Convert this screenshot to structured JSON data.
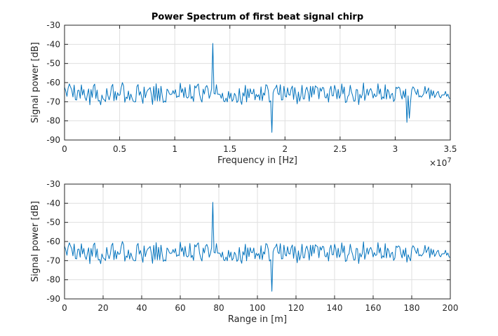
{
  "figure": {
    "title": "Power Spectrum of first beat signal chirp"
  },
  "colors": {
    "line": "#0072bd",
    "axes": "#262626",
    "grid": "#dfdfdf",
    "background": "#ffffff"
  },
  "chart_data": [
    {
      "type": "line",
      "title": "Power Spectrum of first beat signal chirp",
      "xlabel": "Frequency in [Hz]",
      "ylabel": "Signal power [dB]",
      "x_exponent_label": "×10^7",
      "xlim": [
        0,
        35000000
      ],
      "ylim": [
        -90,
        -30
      ],
      "xtick_labels": [
        "0",
        "0.5",
        "1",
        "1.5",
        "2",
        "2.5",
        "3",
        "3.5"
      ],
      "ytick_labels": [
        "-30",
        "-40",
        "-50",
        "-60",
        "-70",
        "-80",
        "-90"
      ],
      "grid": true,
      "series": [
        {
          "x_start": 0,
          "x_end": 35000000,
          "values": [
            -62.4,
            -64.3,
            -67.2,
            -62.8,
            -60.7,
            -62.3,
            -63.9,
            -67.5,
            -61.3,
            -68.9,
            -69.1,
            -64.1,
            -64.0,
            -68.2,
            -61.2,
            -66.5,
            -63.6,
            -67.9,
            -69.4,
            -66.1,
            -63.3,
            -71.6,
            -63.6,
            -67.7,
            -61.8,
            -60.8,
            -68.3,
            -63.9,
            -69.6,
            -69.3,
            -71.6,
            -66.5,
            -68.5,
            -69.0,
            -69.9,
            -63.1,
            -66.9,
            -69.0,
            -66.6,
            -62.1,
            -60.9,
            -69.5,
            -64.6,
            -69.1,
            -65.3,
            -66.7,
            -66.4,
            -62.6,
            -60.0,
            -61.8,
            -70.3,
            -67.6,
            -68.3,
            -64.4,
            -69.2,
            -66.0,
            -68.1,
            -69.7,
            -70.1,
            -70.0,
            -62.1,
            -61.0,
            -66.6,
            -64.7,
            -67.8,
            -70.9,
            -62.3,
            -67.9,
            -65.2,
            -63.9,
            -63.4,
            -62.6,
            -66.1,
            -71.4,
            -62.0,
            -69.4,
            -60.6,
            -69.6,
            -63.0,
            -69.6,
            -61.9,
            -66.7,
            -70.4,
            -69.6,
            -70.2,
            -63.4,
            -64.2,
            -65.9,
            -66.3,
            -66.0,
            -64.2,
            -65.9,
            -63.7,
            -67.8,
            -67.0,
            -67.4,
            -60.3,
            -65.2,
            -63.2,
            -67.8,
            -62.5,
            -67.5,
            -68.1,
            -67.3,
            -61.0,
            -68.4,
            -67.2,
            -69.9,
            -61.7,
            -62.8,
            -61.5,
            -60.7,
            -66.1,
            -68.7,
            -70.2,
            -63.4,
            -66.0,
            -62.4,
            -61.5,
            -63.3,
            -68.2,
            -66.3,
            -63.2,
            -39.5,
            -65.6,
            -66.0,
            -61.1,
            -66.1,
            -66.1,
            -66.2,
            -68.2,
            -65.5,
            -69.6,
            -70.0,
            -68.1,
            -70.1,
            -64.6,
            -68.3,
            -65.5,
            -69.8,
            -68.8,
            -65.6,
            -66.9,
            -70.4,
            -69.5,
            -63.1,
            -69.5,
            -71.4,
            -65.3,
            -67.1,
            -61.4,
            -70.1,
            -63.3,
            -67.9,
            -63.2,
            -65.7,
            -65.8,
            -63.4,
            -69.0,
            -66.1,
            -67.4,
            -66.3,
            -69.2,
            -62.2,
            -69.5,
            -65.4,
            -66.6,
            -61.1,
            -61.5,
            -64.1,
            -70.2,
            -69.5,
            -86.0,
            -65.4,
            -63.5,
            -62.8,
            -61.3,
            -65.6,
            -66.4,
            -61.1,
            -69.1,
            -69.0,
            -61.9,
            -66.9,
            -67.6,
            -62.7,
            -66.3,
            -66.6,
            -63.2,
            -61.8,
            -68.8,
            -62.6,
            -66.5,
            -71.1,
            -64.9,
            -69.7,
            -67.1,
            -61.4,
            -68.5,
            -68.5,
            -63.9,
            -62.4,
            -64.9,
            -69.7,
            -61.9,
            -67.6,
            -61.9,
            -66.2,
            -61.7,
            -62.3,
            -62.8,
            -68.5,
            -62.8,
            -64.5,
            -62.5,
            -62.8,
            -67.5,
            -68.1,
            -65.7,
            -70.2,
            -63.9,
            -61.9,
            -66.9,
            -66.9,
            -61.4,
            -63.8,
            -68.5,
            -63.5,
            -68.2,
            -66.6,
            -60.7,
            -65.9,
            -62.3,
            -70.4,
            -70.1,
            -67.2,
            -66.4,
            -61.4,
            -64.8,
            -66.8,
            -69.7,
            -69.5,
            -63.6,
            -63.8,
            -71.5,
            -66.1,
            -68.1,
            -66.2,
            -60.2,
            -69.3,
            -66.6,
            -63.4,
            -66.7,
            -64.1,
            -63.1,
            -64.8,
            -68.1,
            -65.8,
            -67.3,
            -66.9,
            -60.6,
            -66.0,
            -63.3,
            -68.8,
            -67.4,
            -68.3,
            -61.1,
            -68.6,
            -63.5,
            -64.9,
            -68.4,
            -66.2,
            -65.6,
            -69.9,
            -68.7,
            -62.4,
            -63.1,
            -62.3,
            -62.8,
            -66.3,
            -68.6,
            -64.3,
            -67.8,
            -63.4,
            -80.8,
            -66.9,
            -78.6,
            -70.1,
            -63.8,
            -62.2,
            -63.0,
            -64.9,
            -66.3,
            -63.5,
            -67.5,
            -66.9,
            -67.6,
            -66.8,
            -65.7,
            -62.0,
            -65.8,
            -64.4,
            -62.8,
            -68.5,
            -63.8,
            -66.9,
            -64.3,
            -67.8,
            -66.7,
            -65.2,
            -64.6,
            -67.3,
            -68.0,
            -66.5,
            -66.5,
            -66.4,
            -64.6,
            -67.2,
            -66.0,
            -68.1,
            -68.3
          ]
        }
      ]
    },
    {
      "type": "line",
      "title": "",
      "xlabel": "Range in [m]",
      "ylabel": "Signal power [dB]",
      "xlim": [
        0,
        200
      ],
      "ylim": [
        -90,
        -30
      ],
      "xtick_labels": [
        "0",
        "20",
        "40",
        "60",
        "80",
        "100",
        "120",
        "140",
        "160",
        "180",
        "200"
      ],
      "ytick_labels": [
        "-30",
        "-40",
        "-50",
        "-60",
        "-70",
        "-80",
        "-90"
      ],
      "grid": true,
      "series": [
        {
          "x_start": 0,
          "x_end": 200,
          "values": [
            -62.4,
            -64.3,
            -67.2,
            -62.8,
            -60.7,
            -62.3,
            -63.9,
            -67.5,
            -61.3,
            -68.9,
            -69.1,
            -64.1,
            -64.0,
            -68.2,
            -61.2,
            -66.5,
            -63.6,
            -67.9,
            -69.4,
            -66.1,
            -63.3,
            -71.6,
            -63.6,
            -67.7,
            -61.8,
            -60.8,
            -68.3,
            -63.9,
            -69.6,
            -69.3,
            -71.6,
            -66.5,
            -68.5,
            -69.0,
            -69.9,
            -63.1,
            -66.9,
            -69.0,
            -66.6,
            -62.1,
            -60.9,
            -69.5,
            -64.6,
            -69.1,
            -65.3,
            -66.7,
            -66.4,
            -62.6,
            -60.0,
            -61.8,
            -70.3,
            -67.6,
            -68.3,
            -64.4,
            -69.2,
            -66.0,
            -68.1,
            -69.7,
            -70.1,
            -70.0,
            -62.1,
            -61.0,
            -66.6,
            -64.7,
            -67.8,
            -70.9,
            -62.3,
            -67.9,
            -65.2,
            -63.9,
            -63.4,
            -62.6,
            -66.1,
            -71.4,
            -62.0,
            -69.4,
            -60.6,
            -69.6,
            -63.0,
            -69.6,
            -61.9,
            -66.7,
            -70.4,
            -69.6,
            -70.2,
            -63.4,
            -64.2,
            -65.9,
            -66.3,
            -66.0,
            -64.2,
            -65.9,
            -63.7,
            -67.8,
            -67.0,
            -67.4,
            -60.3,
            -65.2,
            -63.2,
            -67.8,
            -62.5,
            -67.5,
            -68.1,
            -67.3,
            -61.0,
            -68.4,
            -67.2,
            -69.9,
            -61.7,
            -62.8,
            -61.5,
            -60.7,
            -66.1,
            -68.7,
            -70.2,
            -63.4,
            -66.0,
            -62.4,
            -61.5,
            -63.3,
            -68.2,
            -66.3,
            -63.2,
            -39.5,
            -65.6,
            -66.0,
            -61.1,
            -66.1,
            -66.1,
            -66.2,
            -68.2,
            -65.5,
            -69.6,
            -70.0,
            -68.1,
            -70.1,
            -64.6,
            -68.3,
            -65.5,
            -69.8,
            -68.8,
            -65.6,
            -66.9,
            -70.4,
            -69.5,
            -63.1,
            -69.5,
            -71.4,
            -65.3,
            -67.1,
            -61.4,
            -70.1,
            -63.3,
            -67.9,
            -63.2,
            -65.7,
            -65.8,
            -63.4,
            -69.0,
            -66.1,
            -67.4,
            -66.3,
            -69.2,
            -62.2,
            -69.5,
            -65.4,
            -66.6,
            -61.1,
            -61.5,
            -64.1,
            -70.2,
            -69.5,
            -86.0,
            -65.4,
            -63.5,
            -62.8,
            -61.3,
            -65.6,
            -66.4,
            -61.1,
            -69.1,
            -69.0,
            -61.9,
            -66.9,
            -67.6,
            -62.7,
            -66.3,
            -66.6,
            -63.2,
            -61.8,
            -68.8,
            -62.6,
            -66.5,
            -71.1,
            -64.9,
            -69.7,
            -67.1,
            -61.4,
            -68.5,
            -68.5,
            -63.9,
            -62.4,
            -64.9,
            -69.7,
            -61.9,
            -67.6,
            -61.9,
            -66.2,
            -61.7,
            -62.3,
            -62.8,
            -68.5,
            -62.8,
            -64.5,
            -62.5,
            -62.8,
            -67.5,
            -68.1,
            -65.7,
            -70.2,
            -63.9,
            -61.9,
            -66.9,
            -66.9,
            -61.4,
            -63.8,
            -68.5,
            -63.5,
            -68.2,
            -66.6,
            -60.7,
            -65.9,
            -62.3,
            -70.4,
            -70.1,
            -67.2,
            -66.4,
            -61.4,
            -64.8,
            -66.8,
            -69.7,
            -69.5,
            -63.6,
            -63.8,
            -71.5,
            -66.1,
            -68.1,
            -66.2,
            -60.2,
            -69.3,
            -66.6,
            -63.4,
            -66.7,
            -64.1,
            -63.1,
            -64.8,
            -68.1,
            -65.8,
            -67.3,
            -66.9,
            -60.6,
            -66.0,
            -63.3,
            -68.8,
            -67.4,
            -68.3,
            -61.1,
            -68.6,
            -63.5,
            -64.9,
            -68.4,
            -66.2,
            -65.6,
            -69.9,
            -68.7,
            -62.4,
            -63.1,
            -62.3,
            -62.8,
            -66.3,
            -68.6,
            -64.3,
            -67.8,
            -63.4,
            -70.8,
            -66.9,
            -68.6,
            -70.1,
            -63.8,
            -62.2,
            -63.0,
            -64.9,
            -66.3,
            -63.5,
            -67.5,
            -66.9,
            -67.6,
            -66.8,
            -65.7,
            -62.0,
            -65.8,
            -64.4,
            -62.8,
            -68.5,
            -63.8,
            -66.9,
            -64.3,
            -67.8,
            -66.7,
            -65.2,
            -64.6,
            -67.3,
            -68.0,
            -66.5,
            -66.5,
            -66.4,
            -64.6,
            -67.2,
            -66.0,
            -68.1,
            -68.3
          ]
        }
      ]
    }
  ]
}
